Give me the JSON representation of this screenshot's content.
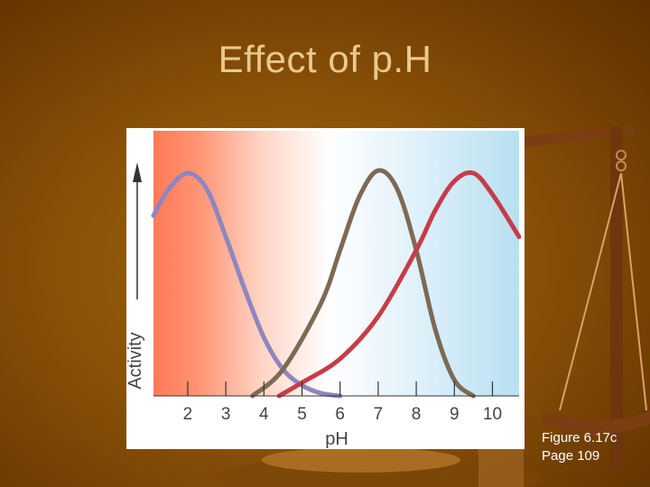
{
  "slide": {
    "title": "Effect of p.H",
    "caption": {
      "line1": "Figure 6.17c",
      "line2": "Page 109"
    }
  },
  "colors": {
    "background": "#8a5208",
    "title": "#e9c98d",
    "acidic_region": "#ff7a56",
    "basic_region": "#b8e0f2",
    "series_blue": "#8f86c0",
    "series_brown": "#7d6a55",
    "series_red": "#c73c48"
  },
  "chart_data": {
    "type": "line",
    "title": "",
    "xlabel": "pH",
    "ylabel": "Activity",
    "xlim": [
      1.1,
      10.7
    ],
    "ylim": [
      0,
      1
    ],
    "x_ticks": [
      "2",
      "3",
      "4",
      "5",
      "6",
      "7",
      "8",
      "9",
      "10"
    ],
    "y_ticks": [],
    "grid": false,
    "legend": "none",
    "series": [
      {
        "color": "#8f86c0",
        "x": [
          1.1,
          1.5,
          2.0,
          2.5,
          3.0,
          3.5,
          4.0,
          4.5,
          5.0,
          5.5,
          6.0
        ],
        "y": [
          0.68,
          0.78,
          0.84,
          0.78,
          0.6,
          0.4,
          0.22,
          0.1,
          0.04,
          0.01,
          0.0
        ]
      },
      {
        "color": "#7d6a55",
        "x": [
          3.7,
          4.5,
          5.5,
          6.0,
          6.5,
          7.0,
          7.5,
          8.0,
          8.5,
          9.0,
          9.5
        ],
        "y": [
          0.0,
          0.1,
          0.35,
          0.55,
          0.75,
          0.85,
          0.78,
          0.55,
          0.25,
          0.06,
          0.0
        ]
      },
      {
        "color": "#c73c48",
        "x": [
          4.4,
          5.0,
          6.0,
          7.0,
          8.0,
          8.5,
          9.0,
          9.5,
          10.0,
          10.7
        ],
        "y": [
          0.0,
          0.05,
          0.14,
          0.3,
          0.55,
          0.7,
          0.81,
          0.84,
          0.76,
          0.6
        ]
      }
    ]
  }
}
